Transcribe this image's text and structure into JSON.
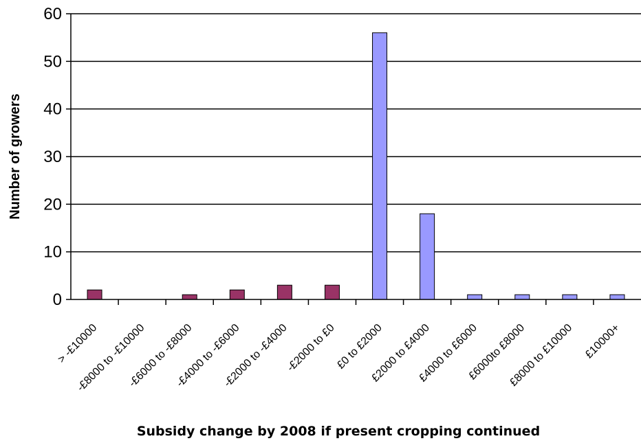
{
  "chart_data": {
    "type": "bar",
    "xlabel": "Subsidy change by 2008 if present cropping continued",
    "ylabel": "Number of growers",
    "ylim": [
      0,
      60
    ],
    "yticks": [
      0,
      10,
      20,
      30,
      40,
      50,
      60
    ],
    "grid": true,
    "categories": [
      "> -£10000",
      "-£8000 to -£10000",
      "-£6000 to -£8000",
      "-£4000 to -£6000",
      "-£2000 to -£4000",
      "-£2000 to £0",
      "£0 to £2000",
      "£2000 to £4000",
      "£4000 to £6000",
      "£6000to £8000",
      "£8000 to £10000",
      "£10000+"
    ],
    "values": [
      2,
      0,
      1,
      2,
      3,
      3,
      56,
      18,
      1,
      1,
      1,
      1
    ],
    "colors": {
      "negative": "#993366",
      "positive": "#9999ff",
      "outline": "#000000"
    }
  }
}
